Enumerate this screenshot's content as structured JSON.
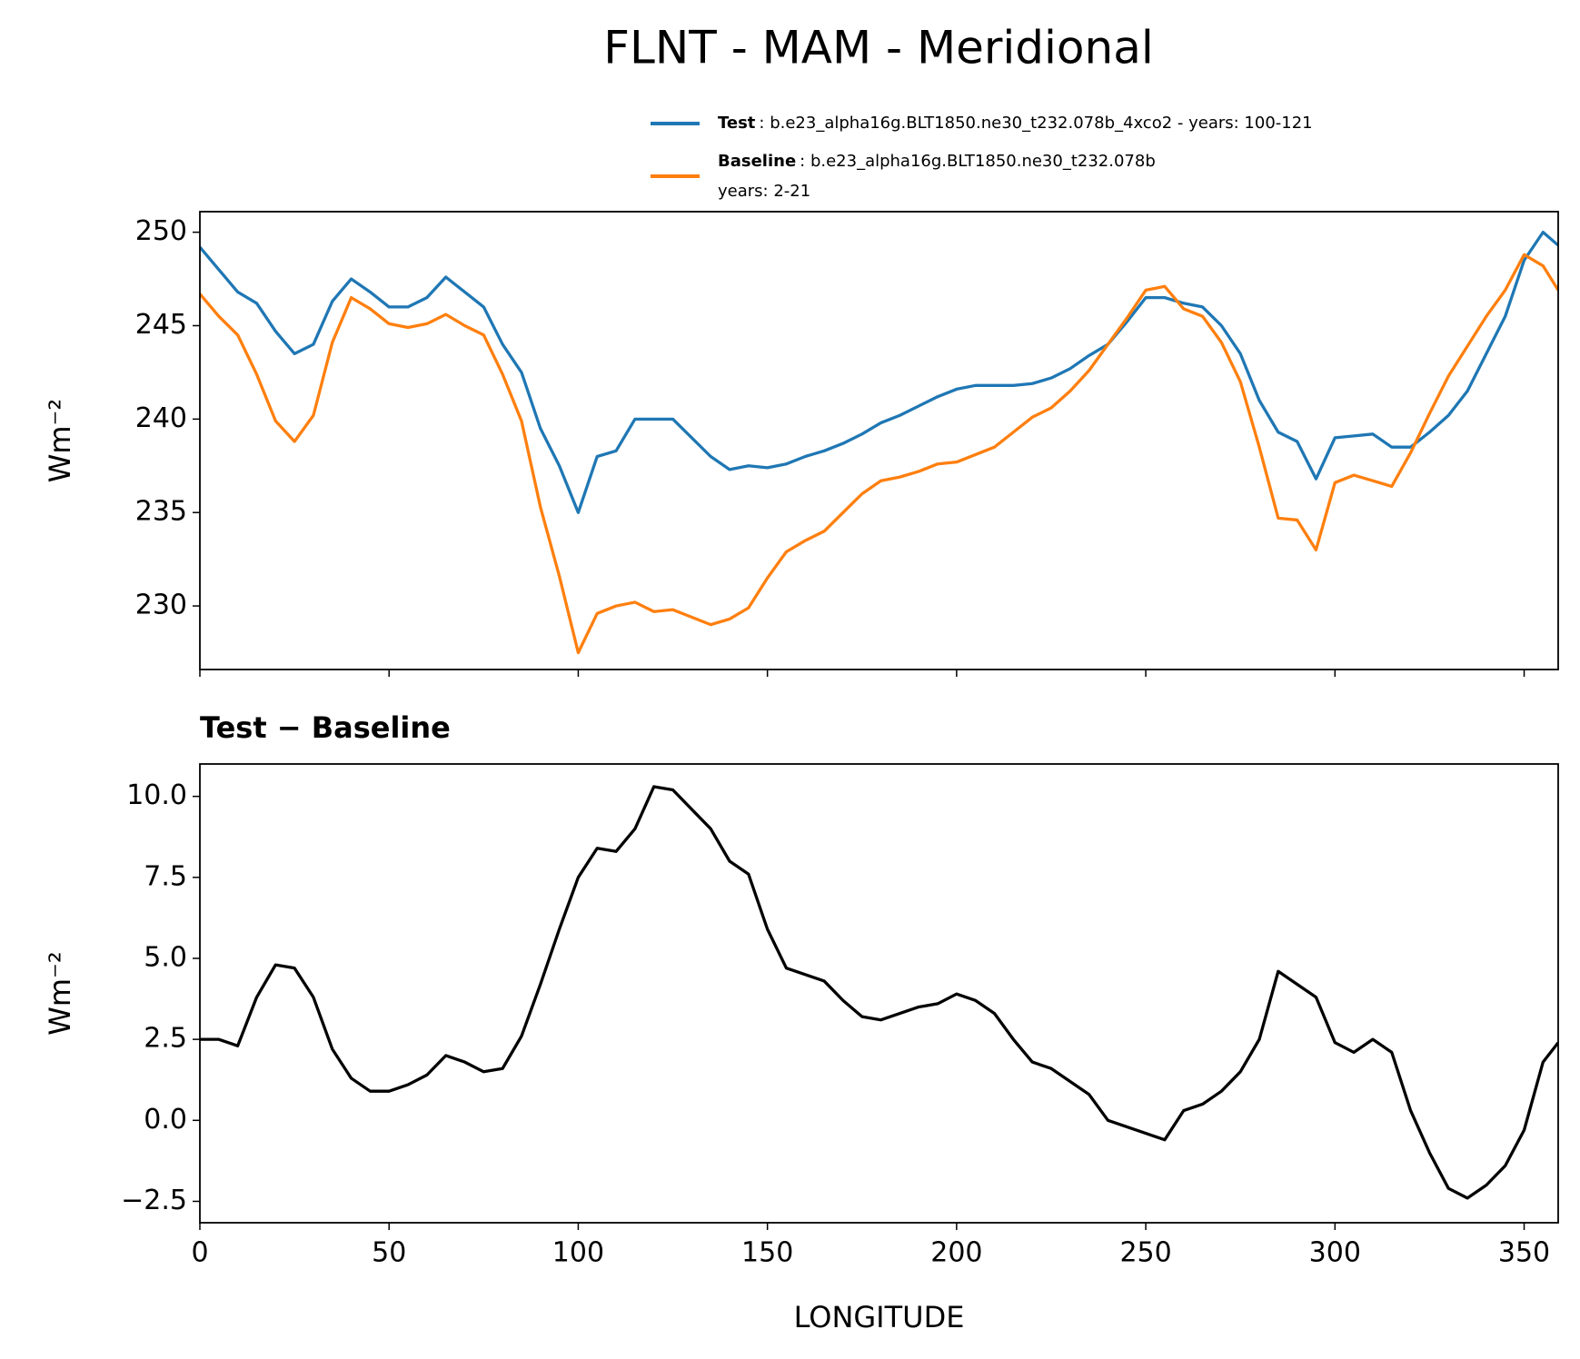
{
  "chart_data": [
    {
      "type": "line",
      "title": "FLNT - MAM - Meridional",
      "y_label": "Wm⁻²",
      "x": [
        0,
        5,
        10,
        15,
        20,
        25,
        30,
        35,
        40,
        45,
        50,
        55,
        60,
        65,
        70,
        75,
        80,
        85,
        90,
        95,
        100,
        105,
        110,
        115,
        120,
        125,
        130,
        135,
        140,
        145,
        150,
        155,
        160,
        165,
        170,
        175,
        180,
        185,
        190,
        195,
        200,
        205,
        210,
        215,
        220,
        225,
        230,
        235,
        240,
        245,
        250,
        255,
        260,
        265,
        270,
        275,
        280,
        285,
        290,
        295,
        300,
        305,
        310,
        315,
        320,
        325,
        330,
        335,
        340,
        345,
        350,
        355,
        359
      ],
      "series": [
        {
          "name": "Test",
          "description": [
            ": b.e23_alpha16g.BLT1850.ne30_t232.078b_4xco2 - years: 100-121"
          ],
          "color": "#1f77b4",
          "values": [
            249.2,
            248.0,
            246.8,
            246.2,
            244.7,
            243.5,
            244.0,
            246.3,
            247.5,
            246.8,
            246.0,
            246.0,
            246.5,
            247.6,
            246.8,
            246.0,
            244.0,
            242.5,
            239.5,
            237.5,
            235.0,
            238.0,
            238.3,
            240.0,
            240.0,
            240.0,
            239.0,
            238.0,
            237.3,
            237.5,
            237.4,
            237.6,
            238.0,
            238.3,
            238.7,
            239.2,
            239.8,
            240.2,
            240.7,
            241.2,
            241.6,
            241.8,
            241.8,
            241.8,
            241.9,
            242.2,
            242.7,
            243.4,
            244.0,
            245.2,
            246.5,
            246.5,
            246.2,
            246.0,
            245.0,
            243.5,
            241.0,
            239.3,
            238.8,
            236.8,
            239.0,
            239.1,
            239.2,
            238.5,
            238.5,
            239.3,
            240.2,
            241.5,
            243.5,
            245.5,
            248.5,
            250.0,
            249.3
          ]
        },
        {
          "name": "Baseline",
          "description": [
            ": b.e23_alpha16g.BLT1850.ne30_t232.078b",
            "years: 2-21"
          ],
          "color": "#ff7f0e",
          "values": [
            246.7,
            245.5,
            244.5,
            242.4,
            239.9,
            238.8,
            240.2,
            244.1,
            246.5,
            245.9,
            245.1,
            244.9,
            245.1,
            245.6,
            245.0,
            244.5,
            242.4,
            239.9,
            235.3,
            231.6,
            227.5,
            229.6,
            230.0,
            230.2,
            229.7,
            229.8,
            229.4,
            229.0,
            229.3,
            229.9,
            231.5,
            232.9,
            233.5,
            234.0,
            235.0,
            236.0,
            236.7,
            236.9,
            237.2,
            237.6,
            237.7,
            238.1,
            238.5,
            239.3,
            240.1,
            240.6,
            241.5,
            242.6,
            244.0,
            245.4,
            246.9,
            247.1,
            245.9,
            245.5,
            244.1,
            242.0,
            238.5,
            234.7,
            234.6,
            233.0,
            236.6,
            237.0,
            236.7,
            236.4,
            238.2,
            240.3,
            242.3,
            243.9,
            245.5,
            246.9,
            248.8,
            248.2,
            246.9
          ]
        }
      ],
      "xlim": [
        0,
        359
      ],
      "xticks": [
        0,
        50,
        100,
        150,
        200,
        250,
        300,
        350
      ],
      "xticklabels": false,
      "ylim": [
        226.6,
        251.1
      ],
      "yticks": [
        230,
        235,
        240,
        245,
        250
      ]
    },
    {
      "type": "line",
      "title": "Test − Baseline",
      "x_label": "LONGITUDE",
      "y_label": "Wm⁻²",
      "x": [
        0,
        5,
        10,
        15,
        20,
        25,
        30,
        35,
        40,
        45,
        50,
        55,
        60,
        65,
        70,
        75,
        80,
        85,
        90,
        95,
        100,
        105,
        110,
        115,
        120,
        125,
        130,
        135,
        140,
        145,
        150,
        155,
        160,
        165,
        170,
        175,
        180,
        185,
        190,
        195,
        200,
        205,
        210,
        215,
        220,
        225,
        230,
        235,
        240,
        245,
        250,
        255,
        260,
        265,
        270,
        275,
        280,
        285,
        290,
        295,
        300,
        305,
        310,
        315,
        320,
        325,
        330,
        335,
        340,
        345,
        350,
        355,
        359
      ],
      "series": [
        {
          "color": "#000000",
          "values": [
            2.5,
            2.5,
            2.3,
            3.8,
            4.8,
            4.7,
            3.8,
            2.2,
            1.3,
            0.9,
            0.9,
            1.1,
            1.4,
            2.0,
            1.8,
            1.5,
            1.6,
            2.6,
            4.2,
            5.9,
            7.5,
            8.4,
            8.3,
            9.0,
            10.3,
            10.2,
            9.6,
            9.0,
            8.0,
            7.6,
            5.9,
            4.7,
            4.5,
            4.3,
            3.7,
            3.2,
            3.1,
            3.3,
            3.5,
            3.6,
            3.9,
            3.7,
            3.3,
            2.5,
            1.8,
            1.6,
            1.2,
            0.8,
            0.0,
            -0.2,
            -0.4,
            -0.6,
            0.3,
            0.5,
            0.9,
            1.5,
            2.5,
            4.6,
            4.2,
            3.8,
            2.4,
            2.1,
            2.5,
            2.1,
            0.3,
            -1.0,
            -2.1,
            -2.4,
            -2.0,
            -1.4,
            -0.3,
            1.8,
            2.4
          ]
        }
      ],
      "xlim": [
        0,
        359
      ],
      "xticks": [
        0,
        50,
        100,
        150,
        200,
        250,
        300,
        350
      ],
      "xticklabels": true,
      "ylim": [
        -3.16,
        11.0
      ],
      "yticks": [
        {
          "value": -2.5,
          "label": "−2.5"
        },
        {
          "value": 0,
          "label": "0.0"
        },
        {
          "value": 2.5,
          "label": "2.5"
        },
        {
          "value": 5,
          "label": "5.0"
        },
        {
          "value": 7.5,
          "label": "7.5"
        },
        {
          "value": 10,
          "label": "10.0"
        }
      ]
    }
  ]
}
